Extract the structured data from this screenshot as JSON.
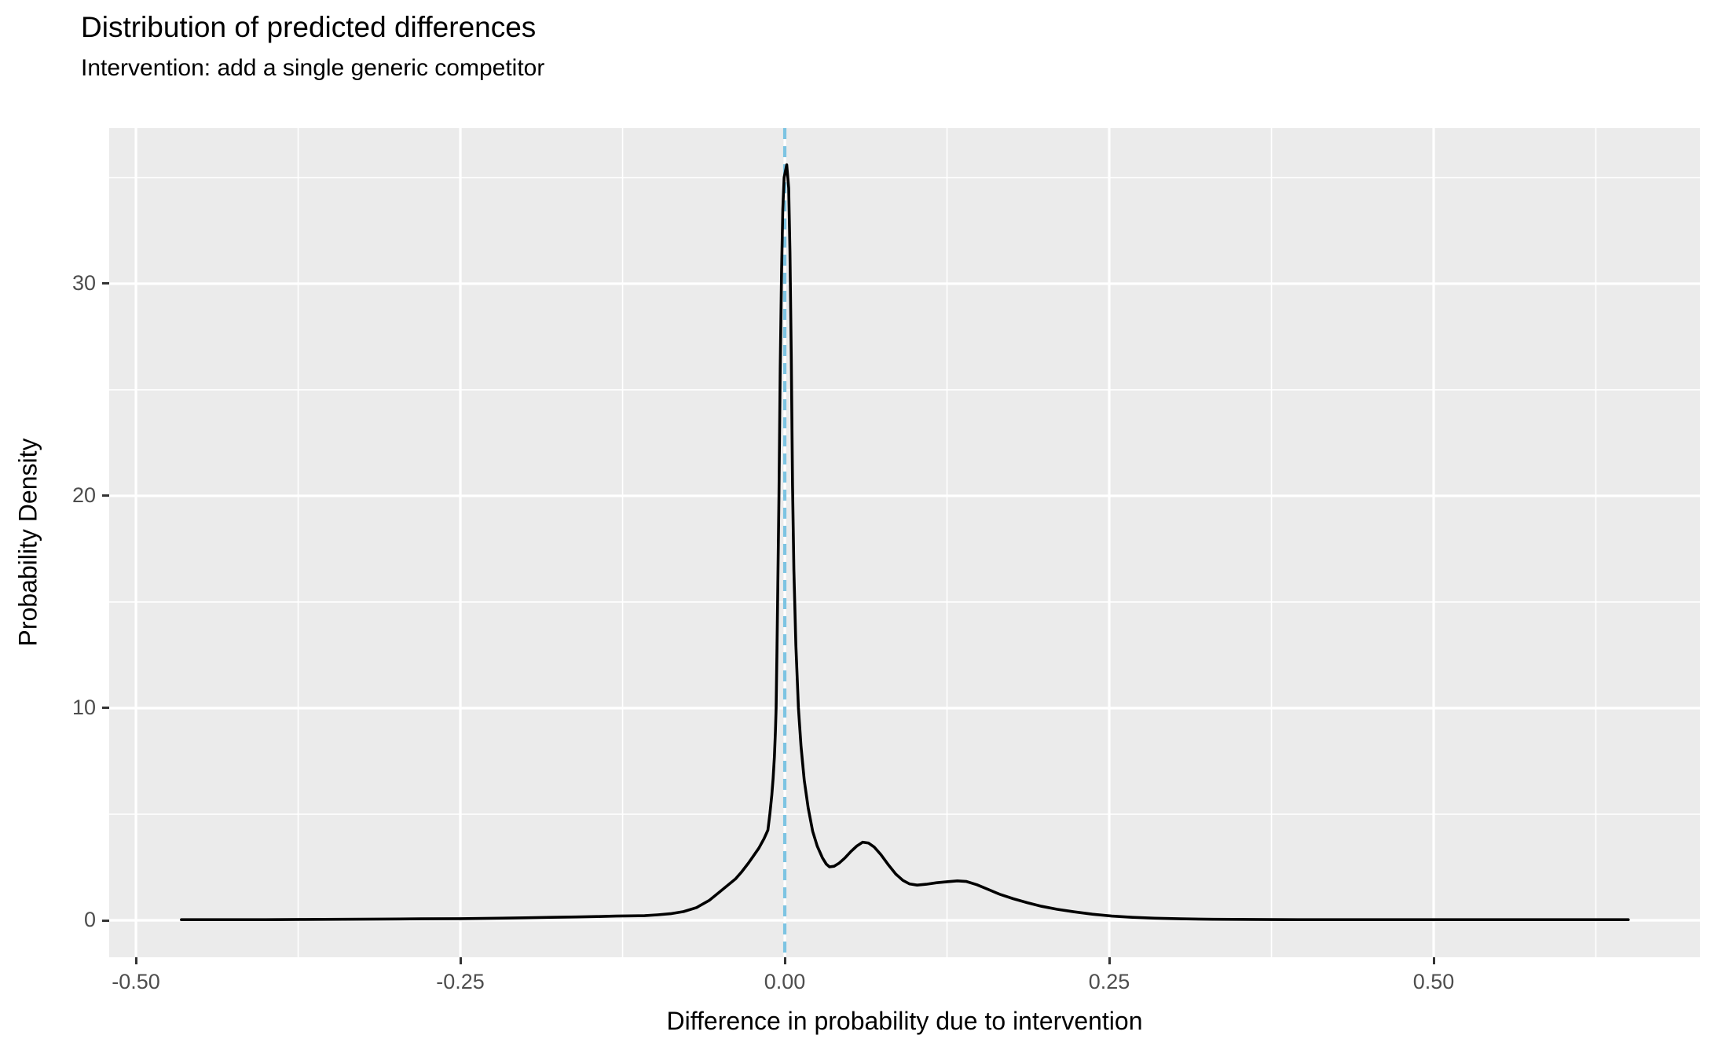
{
  "title": "Distribution of predicted differences",
  "subtitle": "Intervention: add a single generic competitor",
  "chart_data": {
    "type": "line",
    "title": "Distribution of predicted differences",
    "subtitle": "Intervention: add a single generic competitor",
    "xlabel": "Difference in probability due to intervention",
    "ylabel": "Probability Density",
    "xlim": [
      -0.5206,
      0.7052
    ],
    "ylim": [
      -1.74,
      37.33
    ],
    "grid": "on",
    "legend": "none",
    "x_ticks": [
      {
        "value": -0.5,
        "label": "-0.50"
      },
      {
        "value": -0.25,
        "label": "-0.25"
      },
      {
        "value": 0.0,
        "label": "0.00"
      },
      {
        "value": 0.25,
        "label": "0.25"
      },
      {
        "value": 0.5,
        "label": "0.50"
      }
    ],
    "y_ticks": [
      {
        "value": 0,
        "label": "0"
      },
      {
        "value": 10,
        "label": "10"
      },
      {
        "value": 20,
        "label": "20"
      },
      {
        "value": 30,
        "label": "30"
      }
    ],
    "x_minor_ticks": [
      -0.375,
      -0.125,
      0.125,
      0.375,
      0.625
    ],
    "y_minor_ticks": [
      5,
      15,
      25,
      35
    ],
    "vline": {
      "x": 0.0,
      "style": "dashed",
      "color": "#7DC4E2"
    },
    "colors": {
      "panel_bg": "#EBEBEB",
      "grid": "#FFFFFF",
      "curve": "#000000",
      "vline": "#7DC4E2",
      "tick_label": "#4D4D4D",
      "tick_mark": "#333333",
      "text": "#000000"
    },
    "series": [
      {
        "name": "predicted-difference-density",
        "color": "#000000",
        "points": [
          [
            -0.465,
            0.03
          ],
          [
            -0.43,
            0.03
          ],
          [
            -0.4,
            0.03
          ],
          [
            -0.37,
            0.04
          ],
          [
            -0.34,
            0.05
          ],
          [
            -0.31,
            0.06
          ],
          [
            -0.28,
            0.07
          ],
          [
            -0.25,
            0.08
          ],
          [
            -0.22,
            0.1
          ],
          [
            -0.2,
            0.12
          ],
          [
            -0.18,
            0.14
          ],
          [
            -0.16,
            0.16
          ],
          [
            -0.145,
            0.18
          ],
          [
            -0.13,
            0.2
          ],
          [
            -0.118,
            0.21
          ],
          [
            -0.108,
            0.22
          ],
          [
            -0.098,
            0.26
          ],
          [
            -0.088,
            0.31
          ],
          [
            -0.078,
            0.41
          ],
          [
            -0.068,
            0.6
          ],
          [
            -0.058,
            0.95
          ],
          [
            -0.05,
            1.35
          ],
          [
            -0.044,
            1.65
          ],
          [
            -0.038,
            1.95
          ],
          [
            -0.033,
            2.3
          ],
          [
            -0.028,
            2.7
          ],
          [
            -0.024,
            3.05
          ],
          [
            -0.02,
            3.4
          ],
          [
            -0.016,
            3.85
          ],
          [
            -0.013,
            4.25
          ],
          [
            -0.0115,
            5.0
          ],
          [
            -0.01,
            5.9
          ],
          [
            -0.009,
            6.7
          ],
          [
            -0.008,
            7.7
          ],
          [
            -0.0072,
            8.9
          ],
          [
            -0.0067,
            10.0
          ],
          [
            -0.006,
            12.8
          ],
          [
            -0.0055,
            15.0
          ],
          [
            -0.0045,
            20.0
          ],
          [
            -0.0035,
            26.0
          ],
          [
            -0.0025,
            30.5
          ],
          [
            -0.0015,
            33.5
          ],
          [
            -0.0005,
            35.0
          ],
          [
            0.0015,
            35.6
          ],
          [
            0.003,
            34.5
          ],
          [
            0.004,
            31.5
          ],
          [
            0.005,
            26.5
          ],
          [
            0.006,
            20.5
          ],
          [
            0.007,
            16.5
          ],
          [
            0.0085,
            13.0
          ],
          [
            0.0105,
            10.0
          ],
          [
            0.0125,
            8.2
          ],
          [
            0.015,
            6.6
          ],
          [
            0.018,
            5.3
          ],
          [
            0.0215,
            4.2
          ],
          [
            0.025,
            3.5
          ],
          [
            0.029,
            2.95
          ],
          [
            0.032,
            2.65
          ],
          [
            0.0345,
            2.52
          ],
          [
            0.038,
            2.55
          ],
          [
            0.042,
            2.7
          ],
          [
            0.0465,
            2.95
          ],
          [
            0.051,
            3.25
          ],
          [
            0.0555,
            3.5
          ],
          [
            0.06,
            3.68
          ],
          [
            0.0645,
            3.64
          ],
          [
            0.069,
            3.45
          ],
          [
            0.074,
            3.1
          ],
          [
            0.08,
            2.6
          ],
          [
            0.0855,
            2.18
          ],
          [
            0.091,
            1.88
          ],
          [
            0.096,
            1.72
          ],
          [
            0.102,
            1.66
          ],
          [
            0.109,
            1.7
          ],
          [
            0.117,
            1.77
          ],
          [
            0.125,
            1.82
          ],
          [
            0.133,
            1.86
          ],
          [
            0.14,
            1.83
          ],
          [
            0.148,
            1.68
          ],
          [
            0.157,
            1.45
          ],
          [
            0.166,
            1.22
          ],
          [
            0.176,
            1.02
          ],
          [
            0.187,
            0.83
          ],
          [
            0.198,
            0.66
          ],
          [
            0.21,
            0.52
          ],
          [
            0.223,
            0.4
          ],
          [
            0.237,
            0.29
          ],
          [
            0.252,
            0.2
          ],
          [
            0.268,
            0.14
          ],
          [
            0.285,
            0.1
          ],
          [
            0.305,
            0.07
          ],
          [
            0.33,
            0.05
          ],
          [
            0.36,
            0.04
          ],
          [
            0.4,
            0.03
          ],
          [
            0.45,
            0.03
          ],
          [
            0.5,
            0.03
          ],
          [
            0.55,
            0.03
          ],
          [
            0.6,
            0.03
          ],
          [
            0.65,
            0.03
          ]
        ]
      }
    ]
  }
}
